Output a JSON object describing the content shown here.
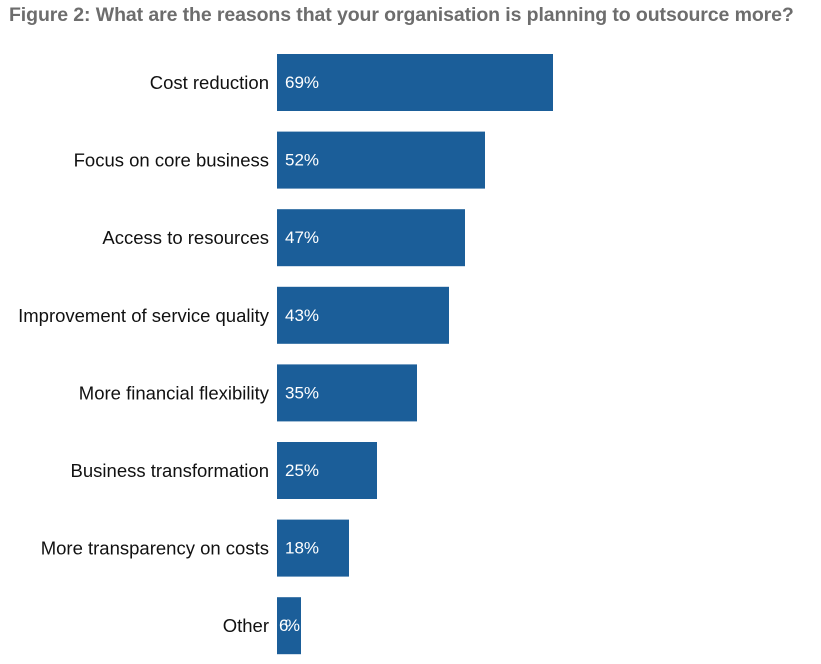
{
  "chart_data": {
    "type": "bar",
    "orientation": "horizontal",
    "title": "Figure 2: What are the reasons that your organisation is planning to outsource more?",
    "categories": [
      "Cost reduction",
      "Focus on core business",
      "Access to resources",
      "Improvement of service quality",
      "More financial flexibility",
      "Business transformation",
      "More transparency on costs",
      "Other"
    ],
    "values": [
      69,
      52,
      47,
      43,
      35,
      25,
      18,
      6
    ],
    "value_labels": [
      "69%",
      "52%",
      "47%",
      "43%",
      "35%",
      "25%",
      "18%",
      "6%"
    ],
    "unit": "%",
    "bar_color": "#1b5e99",
    "grid": false,
    "legend": "none"
  }
}
